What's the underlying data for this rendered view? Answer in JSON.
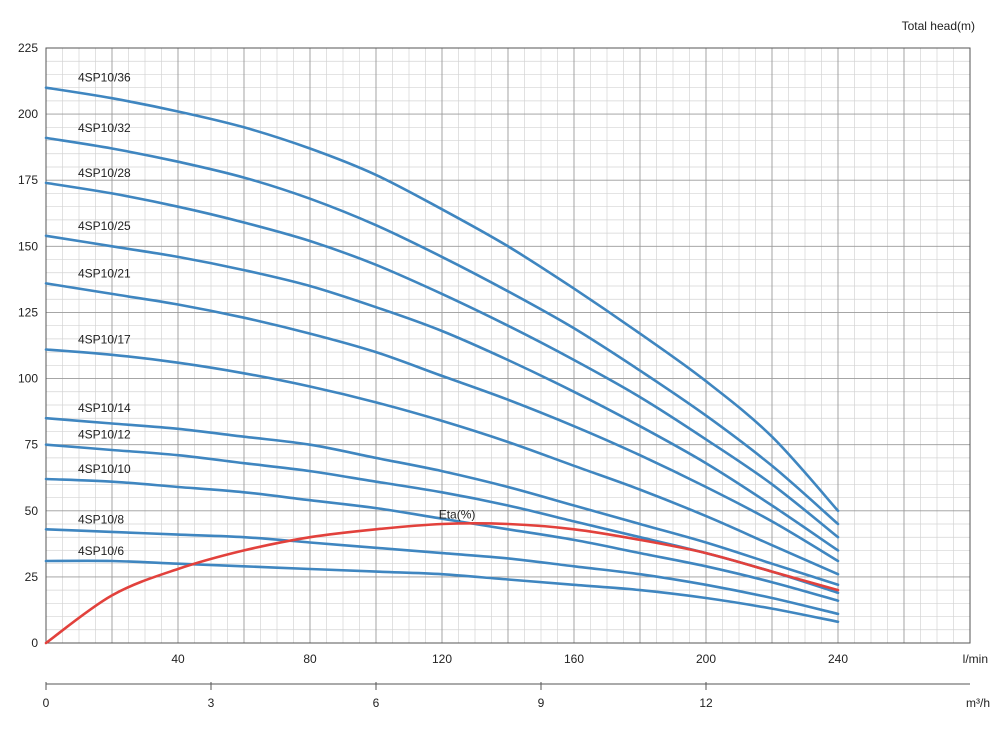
{
  "chart_data": {
    "type": "line",
    "title": "",
    "ylabel": "Total head(m)",
    "xlabel": "l/min",
    "xlabel2": "m³/h",
    "ylim": [
      0,
      225
    ],
    "xlim": [
      0,
      280
    ],
    "y_ticks": [
      "0",
      "25",
      "50",
      "75",
      "100",
      "125",
      "150",
      "175",
      "200",
      "225"
    ],
    "x_ticks": [
      "40",
      "80",
      "120",
      "160",
      "200",
      "240"
    ],
    "x2_ticks": [
      "0",
      "3",
      "6",
      "9",
      "12"
    ],
    "grid": true,
    "colors": {
      "pump_curves": "#3f86c0",
      "efficiency": "#e2413c",
      "grid_major": "#9a9a9a",
      "grid_minor": "#d4d4d4",
      "axis": "#555555"
    },
    "x": [
      0,
      20,
      40,
      60,
      80,
      100,
      120,
      140,
      160,
      180,
      200,
      220,
      240
    ],
    "series": [
      {
        "name": "4SP10/36",
        "values": [
          210,
          206,
          201,
          195,
          187,
          177,
          164,
          150,
          134,
          117,
          99,
          78,
          50
        ]
      },
      {
        "name": "4SP10/32",
        "values": [
          191,
          187,
          182,
          176,
          168,
          158,
          146,
          133,
          119,
          103,
          86,
          67,
          45
        ]
      },
      {
        "name": "4SP10/28",
        "values": [
          174,
          170,
          165,
          159,
          152,
          143,
          132,
          120,
          107,
          93,
          77,
          60,
          40
        ]
      },
      {
        "name": "4SP10/25",
        "values": [
          154,
          150,
          146,
          141,
          135,
          127,
          118,
          107,
          95,
          82,
          68,
          52,
          35
        ]
      },
      {
        "name": "4SP10/21",
        "values": [
          136,
          132,
          128,
          123,
          117,
          110,
          101,
          92,
          82,
          71,
          59,
          46,
          31
        ]
      },
      {
        "name": "4SP10/17",
        "values": [
          111,
          109,
          106,
          102,
          97,
          91,
          84,
          76,
          67,
          58,
          48,
          37,
          26
        ]
      },
      {
        "name": "4SP10/14",
        "values": [
          85,
          83,
          81,
          78,
          75,
          70,
          65,
          59,
          52,
          45,
          38,
          30,
          22
        ]
      },
      {
        "name": "4SP10/12",
        "values": [
          75,
          73,
          71,
          68,
          65,
          61,
          57,
          52,
          46,
          40,
          34,
          27,
          19
        ]
      },
      {
        "name": "4SP10/10",
        "values": [
          62,
          61,
          59,
          57,
          54,
          51,
          47,
          43,
          39,
          34,
          29,
          23,
          16
        ]
      },
      {
        "name": "4SP10/8",
        "values": [
          43,
          42,
          41,
          40,
          38,
          36,
          34,
          32,
          29,
          26,
          22,
          17,
          11
        ]
      },
      {
        "name": "4SP10/6",
        "values": [
          31,
          31,
          30,
          29,
          28,
          27,
          26,
          24,
          22,
          20,
          17,
          13,
          8
        ]
      }
    ],
    "efficiency": {
      "name": "Eta(%)",
      "x": [
        0,
        20,
        40,
        60,
        80,
        100,
        120,
        140,
        160,
        180,
        200,
        220,
        240
      ],
      "values": [
        0,
        18,
        28,
        35,
        40,
        43,
        45,
        45,
        43,
        39,
        34,
        27,
        20
      ]
    }
  }
}
